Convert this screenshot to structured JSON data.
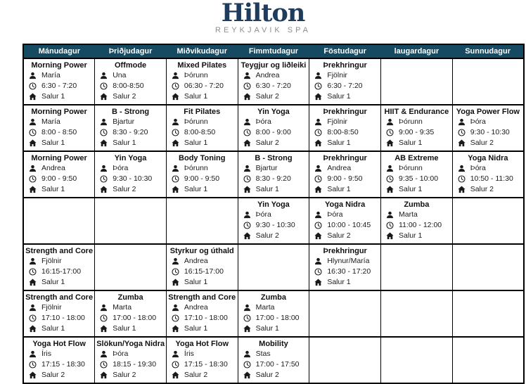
{
  "logo": {
    "brand": "Hilton",
    "subtitle": "REYKJAVIK SPA"
  },
  "colors": {
    "header_bg": "#154A62",
    "logo_navy": "#1D3C5E",
    "subtitle_gray": "#8B8E90"
  },
  "icons": {
    "instructor": "person-icon",
    "time": "clock-icon",
    "room": "home-icon"
  },
  "days": [
    "Mánudagur",
    "Þriðjudagur",
    "Miðvikudagur",
    "Fimmtudagur",
    "Föstudagur",
    "laugardagur",
    "Sunnudagur"
  ],
  "rows": [
    [
      {
        "name": "Morning Power",
        "instructor": "María",
        "time": "6:30 - 7:20",
        "room": "Salur 1"
      },
      {
        "name": "Offmode",
        "instructor": "Una",
        "time": "8:00-8:50",
        "room": "Salur 2"
      },
      {
        "name": "Mixed Pilates",
        "instructor": "Þórunn",
        "time": "06:30 - 7:20",
        "room": "Salur 1"
      },
      {
        "name": "Teygjur og liðleiki",
        "instructor": "Andrea",
        "time": "6:30 - 7:20",
        "room": "Salur 2"
      },
      {
        "name": "Þrekhringur",
        "instructor": "Fjölnir",
        "time": "6:30 - 7:20",
        "room": "Salur 1"
      },
      null,
      null
    ],
    [
      {
        "name": "Morning Power",
        "instructor": "María",
        "time": "8:00 - 8:50",
        "room": "Salur 1"
      },
      {
        "name": "B - Strong",
        "instructor": "Bjartur",
        "time": "8:30 - 9:20",
        "room": "Salur 1"
      },
      {
        "name": "Fit Pilates",
        "instructor": "Þórunn",
        "time": "8:00-8:50",
        "room": "Salur 1"
      },
      {
        "name": "Yin Yoga",
        "instructor": "Þóra",
        "time": "8:00 - 9:00",
        "room": "Salur 2"
      },
      {
        "name": "Þrekhringur",
        "instructor": "Fjölnir",
        "time": "8:00-8:50",
        "room": "Salur 1"
      },
      {
        "name": "HIIT & Endurance",
        "instructor": "Þórunn",
        "time": "9:00 - 9:35",
        "room": "Salur 1"
      },
      {
        "name": "Yoga Power Flow",
        "instructor": "Þóra",
        "time": "9:30 - 10:30",
        "room": "Salur 2"
      }
    ],
    [
      {
        "name": "Morning Power",
        "instructor": "Andrea",
        "time": "9:00 - 9:50",
        "room": "Salur 1"
      },
      {
        "name": "Yin Yoga",
        "instructor": "Þóra",
        "time": "9:30 - 10:30",
        "room": "Salur 2"
      },
      {
        "name": "Body Toning",
        "instructor": "Þórunn",
        "time": "9:00 - 9:50",
        "room": "Salur 1"
      },
      {
        "name": "B - Strong",
        "instructor": "Bjartur",
        "time": "8:30 - 9:20",
        "room": "Salur 1"
      },
      {
        "name": "Þrekhringur",
        "instructor": "Andrea",
        "time": "9:00 - 9:50",
        "room": "Salur 1"
      },
      {
        "name": "AB Extreme",
        "instructor": "Þórunn",
        "time": "9:35 - 10:00",
        "room": "Salur 1"
      },
      {
        "name": "Yoga Nidra",
        "instructor": "Þóra",
        "time": "10:50 - 11:30",
        "room": "Salur 2"
      }
    ],
    [
      null,
      null,
      null,
      {
        "name": "Yin Yoga",
        "instructor": "Þóra",
        "time": "9:30 - 10:30",
        "room": "Salur 2"
      },
      {
        "name": "Yoga Nidra",
        "instructor": "Þóra",
        "time": "10:00 - 10:45",
        "room": "Salur 2"
      },
      {
        "name": "Zumba",
        "instructor": "Marta",
        "time": "11:00 - 12:00",
        "room": "Salur 1"
      },
      null
    ],
    [
      {
        "name": "Strength and Core",
        "instructor": "Fjölnir",
        "time": "16:15-17:00",
        "room": "Salur 1"
      },
      null,
      {
        "name": "Styrkur og úthald",
        "instructor": "Andrea",
        "time": "16:15-17:00",
        "room": "Salur 1"
      },
      null,
      {
        "name": "Þrekhringur",
        "instructor": "Hlynur/María",
        "time": "16:30 - 17:20",
        "room": "Salur 1"
      },
      null,
      null
    ],
    [
      {
        "name": "Strength and Core",
        "instructor": "Fjölnir",
        "time": "17:10 - 18:00",
        "room": "Salur 1"
      },
      {
        "name": "Zumba",
        "instructor": "Marta",
        "time": "17:00 - 18:00",
        "room": "Salur 1"
      },
      {
        "name": "Strength and Core",
        "instructor": "Andrea",
        "time": "17:10 - 18:00",
        "room": "Salur 1"
      },
      {
        "name": "Zumba",
        "instructor": "Marta",
        "time": "17:00 - 18:00",
        "room": "Salur 1"
      },
      null,
      null,
      null
    ],
    [
      {
        "name": "Yoga Hot Flow",
        "instructor": "Íris",
        "time": "17:15 - 18:30",
        "room": "Salur 2"
      },
      {
        "name": "Slökun/Yoga Nidra",
        "instructor": "Þóra",
        "time": "18:15 - 19:30",
        "room": "Salur 2"
      },
      {
        "name": "Yoga Hot Flow",
        "instructor": "Íris",
        "time": "17:15 - 18:30",
        "room": "Salur 2"
      },
      {
        "name": "Mobility",
        "instructor": "Stas",
        "time": "17:00 - 17:50",
        "room": "Salur 2"
      },
      null,
      null,
      null
    ]
  ]
}
